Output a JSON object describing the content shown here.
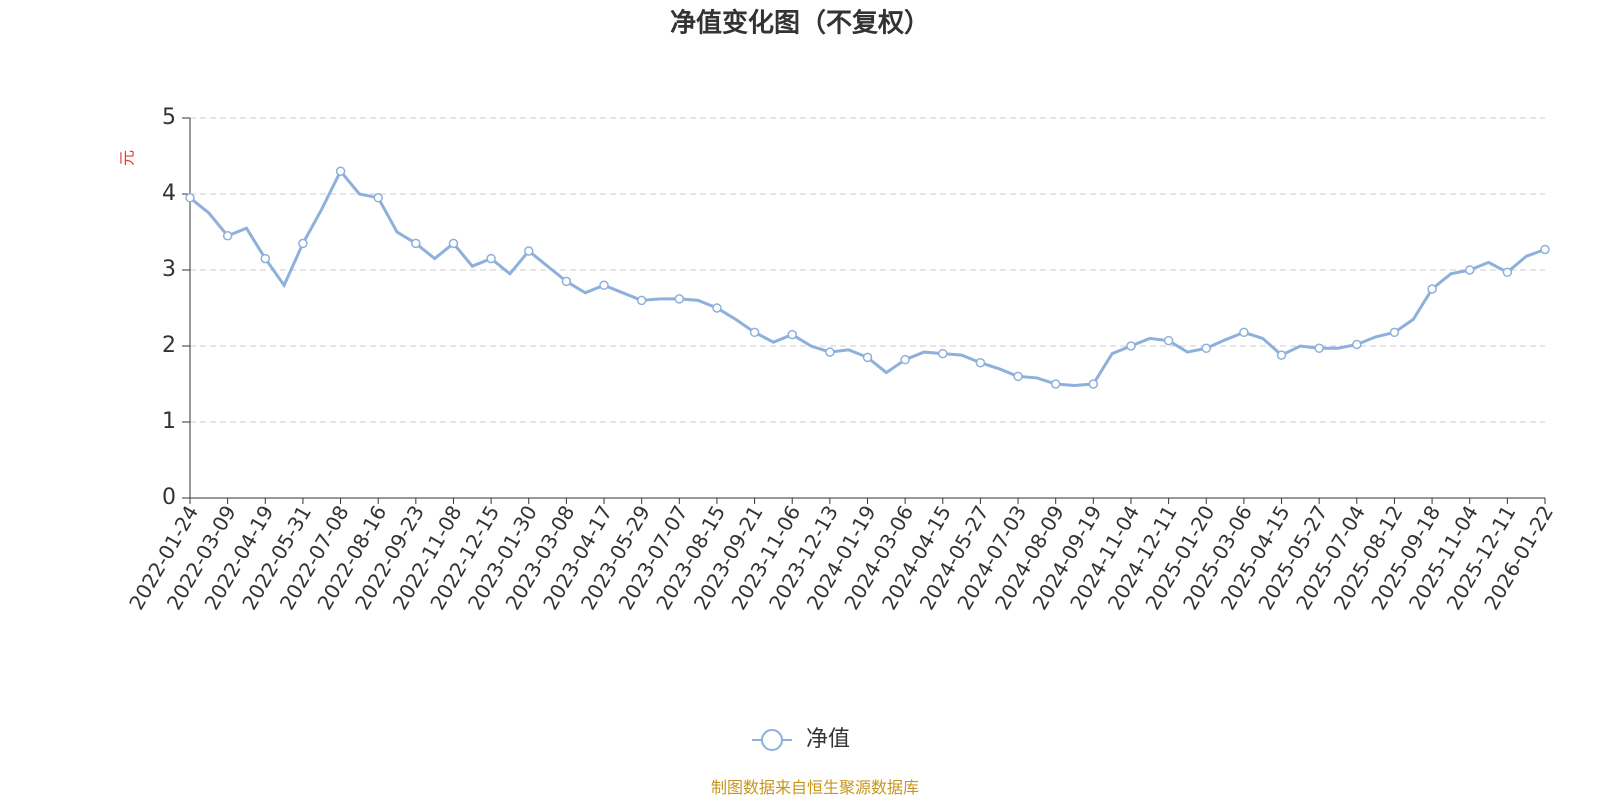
{
  "chart_data": {
    "type": "line",
    "title": "净值变化图（不复权）",
    "y_label": "元",
    "categories": [
      "2022-01-24",
      null,
      "2022-03-09",
      null,
      "2022-04-19",
      null,
      "2022-05-31",
      null,
      "2022-07-08",
      null,
      "2022-08-16",
      null,
      "2022-09-23",
      null,
      "2022-11-08",
      null,
      "2022-12-15",
      null,
      "2023-01-30",
      null,
      "2023-03-08",
      null,
      "2023-04-17",
      null,
      "2023-05-29",
      null,
      "2023-07-07",
      null,
      "2023-08-15",
      null,
      "2023-09-21",
      null,
      "2023-11-06",
      null,
      "2023-12-13",
      null,
      "2024-01-19",
      null,
      "2024-03-06",
      null,
      "2024-04-15",
      null,
      "2024-05-27",
      null,
      "2024-07-03",
      null,
      "2024-08-09",
      null,
      "2024-09-19",
      null,
      "2024-11-04",
      null,
      "2024-12-11",
      null,
      "2025-01-20",
      null,
      "2025-03-06",
      null,
      "2025-04-15",
      null,
      "2025-05-27",
      null,
      "2025-07-04",
      null,
      "2025-08-12",
      null,
      "2025-09-18",
      null,
      "2025-11-04",
      null,
      "2025-12-11",
      null,
      "2026-01-22"
    ],
    "series": [
      {
        "name": "净值",
        "color": "#8eb0dc",
        "values": [
          3.95,
          3.75,
          3.45,
          3.55,
          3.15,
          2.8,
          3.35,
          3.8,
          4.3,
          4.0,
          3.95,
          3.5,
          3.35,
          3.15,
          3.35,
          3.05,
          3.15,
          2.95,
          3.25,
          3.05,
          2.85,
          2.7,
          2.8,
          2.7,
          2.6,
          2.62,
          2.62,
          2.6,
          2.5,
          2.35,
          2.18,
          2.05,
          2.15,
          2.0,
          1.92,
          1.95,
          1.85,
          1.65,
          1.82,
          1.92,
          1.9,
          1.88,
          1.78,
          1.7,
          1.6,
          1.58,
          1.5,
          1.48,
          1.5,
          1.9,
          2.0,
          2.1,
          2.07,
          1.92,
          1.97,
          2.08,
          2.18,
          2.1,
          1.88,
          2.0,
          1.97,
          1.97,
          2.02,
          2.12,
          2.18,
          2.35,
          2.75,
          2.95,
          3.0,
          3.1,
          2.97,
          3.18,
          3.27
        ]
      }
    ],
    "ylim": [
      0,
      5
    ],
    "yticks": [
      0,
      1,
      2,
      3,
      4,
      5
    ],
    "grid": true,
    "source": "制图数据来自恒生聚源数据库"
  }
}
